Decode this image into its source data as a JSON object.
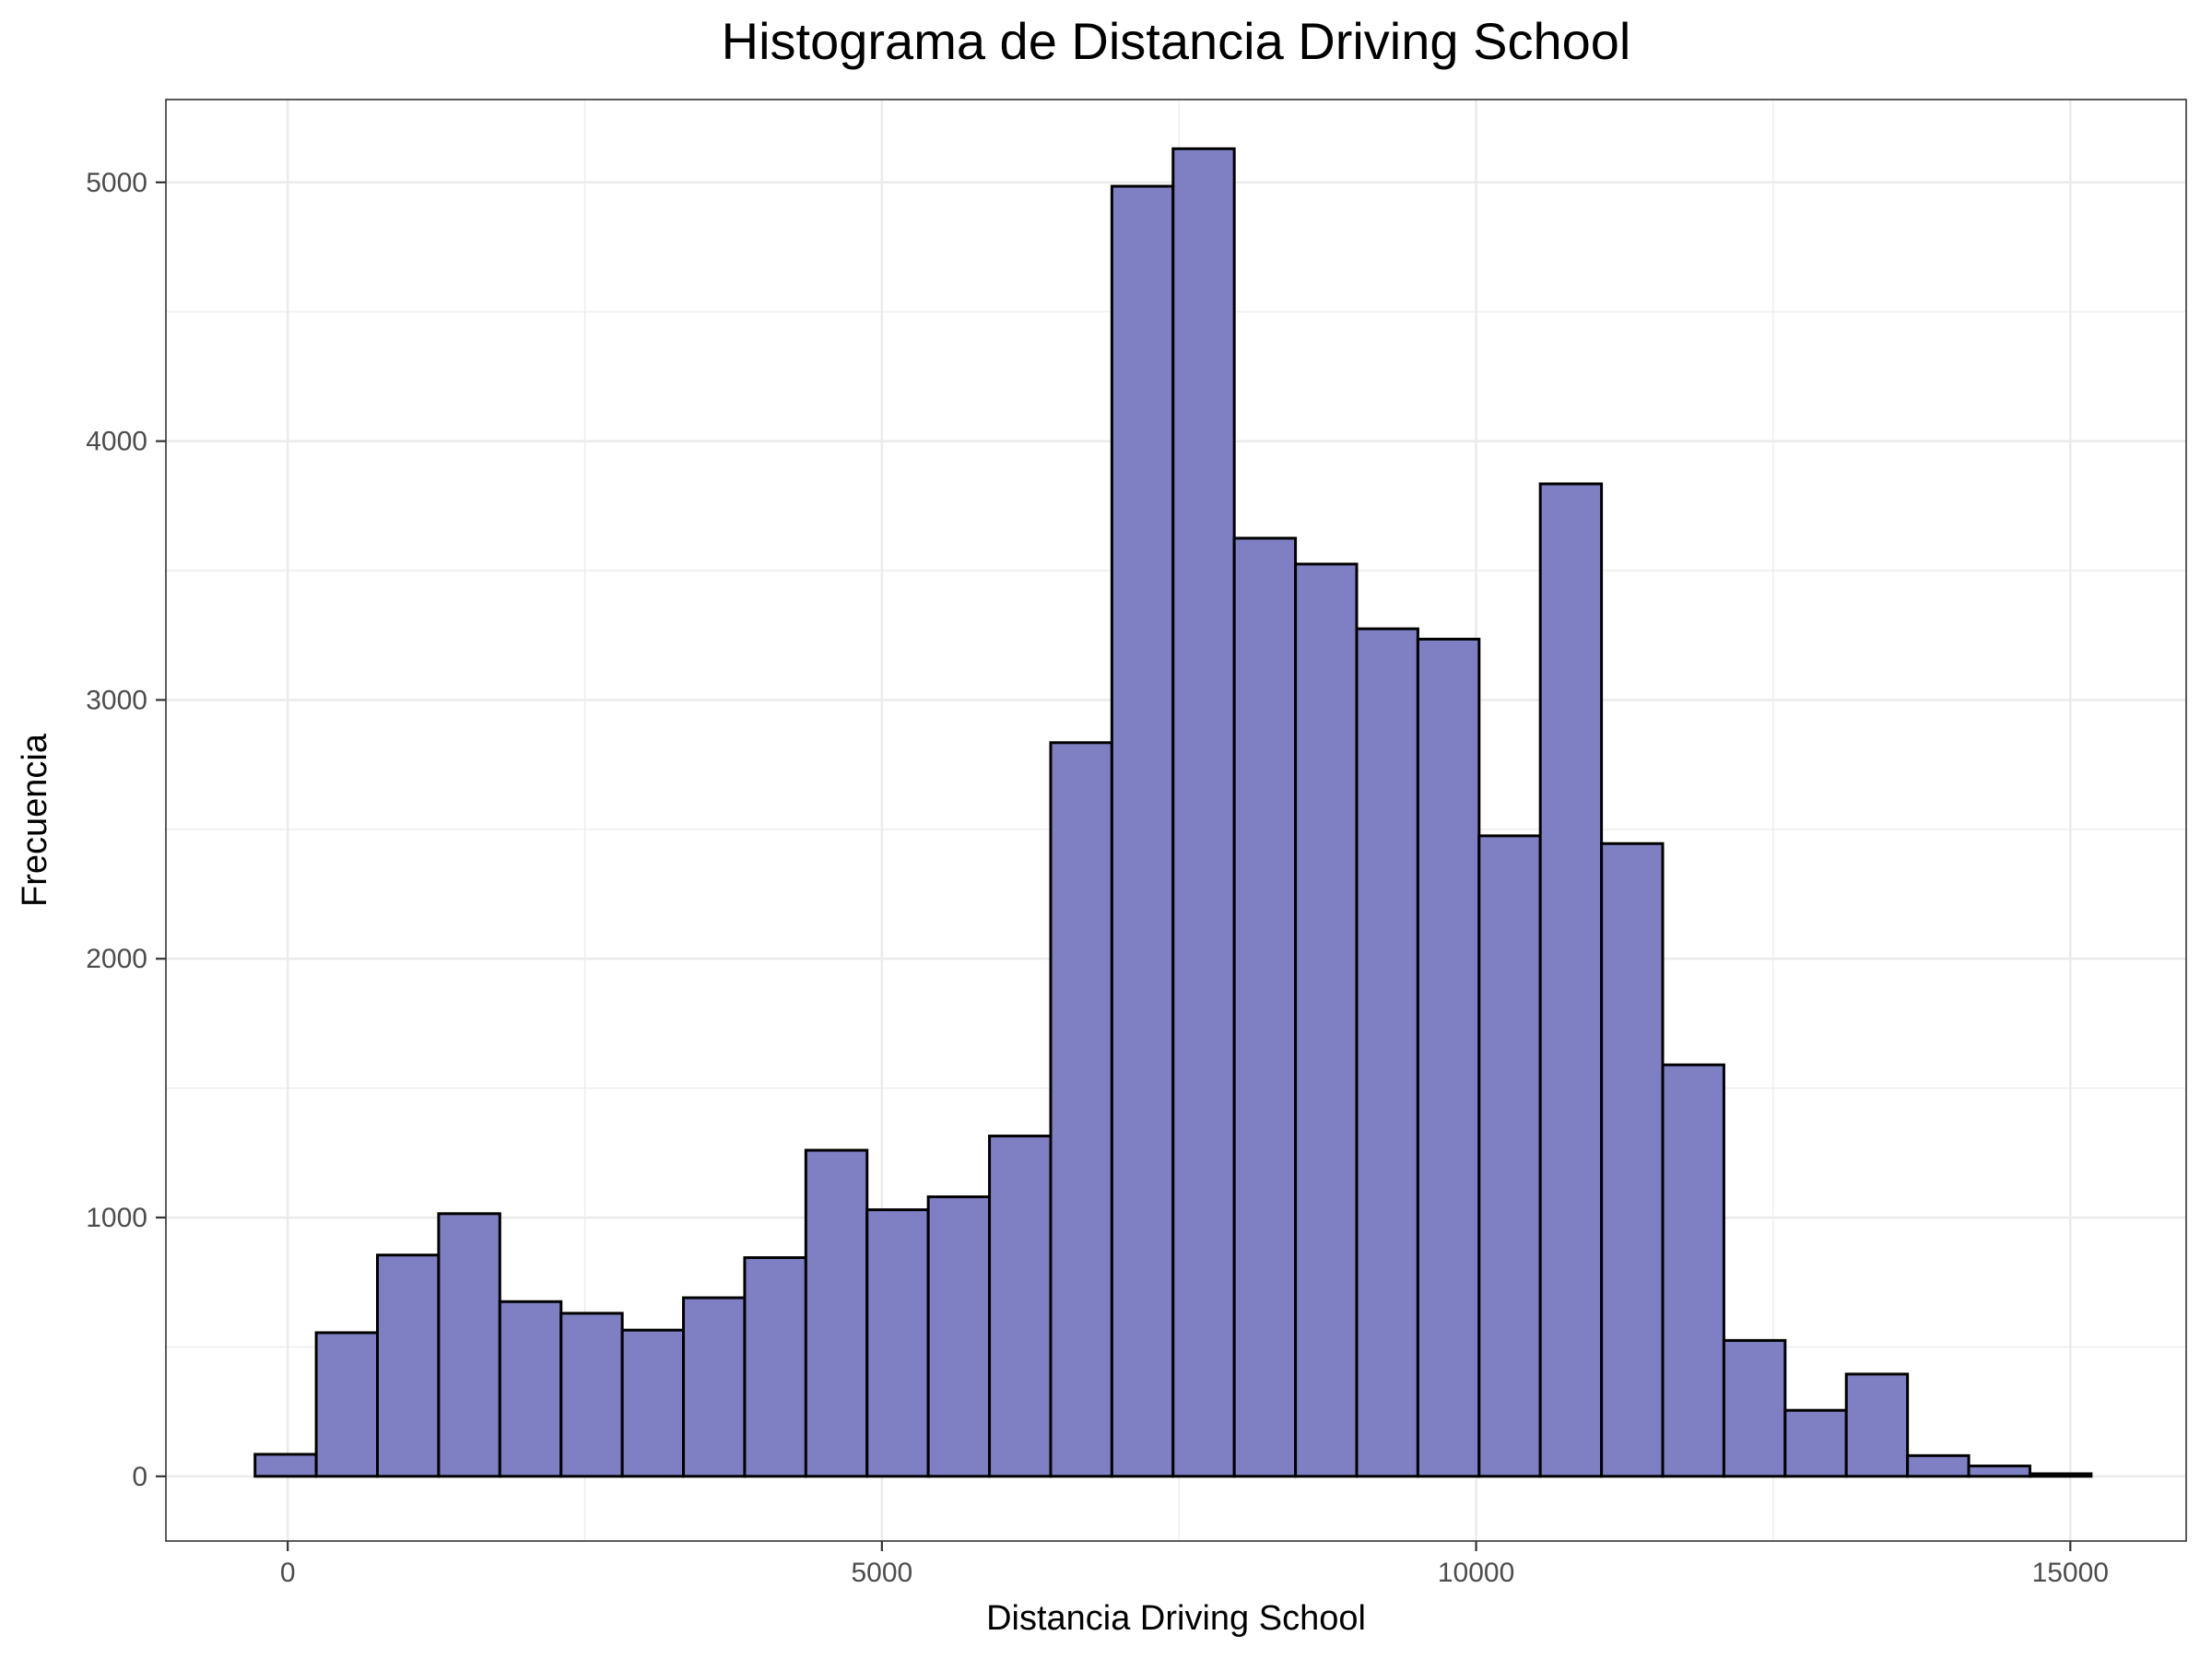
{
  "chart_data": {
    "type": "bar",
    "title": "Histograma de Distancia Driving School",
    "xlabel": "Distancia Driving School",
    "ylabel": "Frecuencia",
    "xlim": [
      -1025,
      15975
    ],
    "ylim": [
      -250,
      5320
    ],
    "x_ticks": [
      0,
      5000,
      10000,
      15000
    ],
    "x_tick_labels": [
      "0",
      "5000",
      "10000",
      "15000"
    ],
    "y_ticks": [
      0,
      1000,
      2000,
      3000,
      4000,
      5000
    ],
    "y_tick_labels": [
      "0",
      "1000",
      "2000",
      "3000",
      "4000",
      "5000"
    ],
    "bin_width": 515,
    "bin_start": -275,
    "values": [
      85,
      555,
      855,
      1015,
      675,
      630,
      565,
      690,
      845,
      1260,
      1030,
      1080,
      1315,
      2835,
      4985,
      5130,
      3625,
      3525,
      3275,
      3235,
      2475,
      3835,
      2445,
      1590,
      525,
      255,
      395,
      80,
      40,
      10
    ],
    "bar_fill": "#7f7fc4",
    "bar_edge": "#000000",
    "grid": true,
    "theme": "bw"
  }
}
